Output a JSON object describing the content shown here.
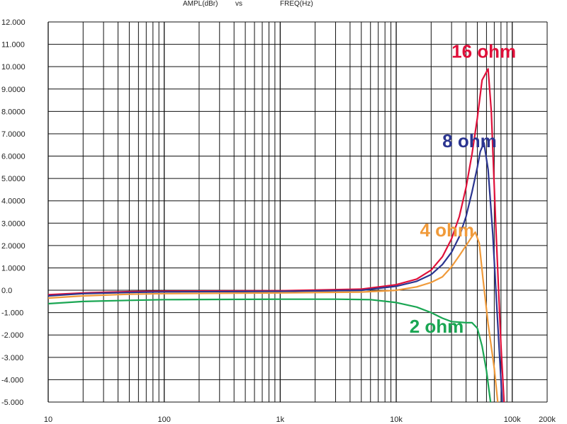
{
  "chart_data": {
    "type": "line",
    "title_left": "AMPL(dBr)",
    "title_mid": "vs",
    "title_right": "FREQ(Hz)",
    "xscale": "log",
    "xlim": [
      10,
      200000
    ],
    "ylim": [
      -5,
      12
    ],
    "grid": true,
    "x_ticks": [
      {
        "value": 10,
        "label": "10"
      },
      {
        "value": 100,
        "label": "100"
      },
      {
        "value": 1000,
        "label": "1k"
      },
      {
        "value": 10000,
        "label": "10k"
      },
      {
        "value": 100000,
        "label": "100k"
      },
      {
        "value": 200000,
        "label": "200k"
      }
    ],
    "y_ticks": [
      {
        "value": 12,
        "label": "12.000"
      },
      {
        "value": 11,
        "label": "11.000"
      },
      {
        "value": 10,
        "label": "10.000"
      },
      {
        "value": 9,
        "label": "9.0000"
      },
      {
        "value": 8,
        "label": "8.0000"
      },
      {
        "value": 7,
        "label": "7.0000"
      },
      {
        "value": 6,
        "label": "6.0000"
      },
      {
        "value": 5,
        "label": "5.0000"
      },
      {
        "value": 4,
        "label": "4.0000"
      },
      {
        "value": 3,
        "label": "3.0000"
      },
      {
        "value": 2,
        "label": "2.0000"
      },
      {
        "value": 1,
        "label": "1.0000"
      },
      {
        "value": 0,
        "label": "0.0"
      },
      {
        "value": -1,
        "label": "-1.000"
      },
      {
        "value": -2,
        "label": "-2.000"
      },
      {
        "value": -3,
        "label": "-3.000"
      },
      {
        "value": -4,
        "label": "-4.000"
      },
      {
        "value": -5,
        "label": "-5.000"
      }
    ],
    "series": [
      {
        "name": "16 ohm",
        "color": "#e0103a",
        "points": [
          [
            10,
            -0.2
          ],
          [
            20,
            -0.12
          ],
          [
            50,
            -0.06
          ],
          [
            100,
            -0.04
          ],
          [
            1000,
            -0.02
          ],
          [
            5000,
            0.05
          ],
          [
            10000,
            0.25
          ],
          [
            15000,
            0.5
          ],
          [
            20000,
            0.9
          ],
          [
            25000,
            1.5
          ],
          [
            30000,
            2.3
          ],
          [
            35000,
            3.3
          ],
          [
            40000,
            4.6
          ],
          [
            45000,
            6.1
          ],
          [
            50000,
            7.7
          ],
          [
            55000,
            9.4
          ],
          [
            62000,
            9.9
          ],
          [
            66000,
            8.0
          ],
          [
            72000,
            3.0
          ],
          [
            80000,
            -2.5
          ],
          [
            85000,
            -5.0
          ]
        ]
      },
      {
        "name": "8 ohm",
        "color": "#2b3590",
        "points": [
          [
            10,
            -0.25
          ],
          [
            20,
            -0.15
          ],
          [
            50,
            -0.1
          ],
          [
            100,
            -0.07
          ],
          [
            1000,
            -0.05
          ],
          [
            5000,
            0.0
          ],
          [
            10000,
            0.18
          ],
          [
            15000,
            0.4
          ],
          [
            20000,
            0.7
          ],
          [
            25000,
            1.15
          ],
          [
            30000,
            1.7
          ],
          [
            35000,
            2.4
          ],
          [
            40000,
            3.3
          ],
          [
            45000,
            4.4
          ],
          [
            50000,
            5.5
          ],
          [
            53000,
            6.2
          ],
          [
            57000,
            6.6
          ],
          [
            62000,
            5.4
          ],
          [
            68000,
            2.5
          ],
          [
            75000,
            -1.5
          ],
          [
            82000,
            -5.0
          ]
        ]
      },
      {
        "name": "4 ohm",
        "color": "#f09a3a",
        "points": [
          [
            10,
            -0.35
          ],
          [
            20,
            -0.25
          ],
          [
            50,
            -0.18
          ],
          [
            100,
            -0.15
          ],
          [
            1000,
            -0.12
          ],
          [
            5000,
            -0.08
          ],
          [
            10000,
            0.0
          ],
          [
            15000,
            0.15
          ],
          [
            20000,
            0.35
          ],
          [
            25000,
            0.6
          ],
          [
            30000,
            1.05
          ],
          [
            35000,
            1.55
          ],
          [
            40000,
            2.0
          ],
          [
            45000,
            2.4
          ],
          [
            48000,
            2.6
          ],
          [
            52000,
            2.1
          ],
          [
            56000,
            0.5
          ],
          [
            62000,
            -1.5
          ],
          [
            70000,
            -3.5
          ],
          [
            75000,
            -5.0
          ]
        ]
      },
      {
        "name": "2 ohm",
        "color": "#1aa653",
        "points": [
          [
            10,
            -0.6
          ],
          [
            20,
            -0.5
          ],
          [
            50,
            -0.45
          ],
          [
            100,
            -0.42
          ],
          [
            1000,
            -0.4
          ],
          [
            3000,
            -0.4
          ],
          [
            6000,
            -0.42
          ],
          [
            10000,
            -0.55
          ],
          [
            15000,
            -0.75
          ],
          [
            20000,
            -1.0
          ],
          [
            25000,
            -1.25
          ],
          [
            30000,
            -1.4
          ],
          [
            40000,
            -1.45
          ],
          [
            45000,
            -1.45
          ],
          [
            50000,
            -1.7
          ],
          [
            55000,
            -2.5
          ],
          [
            60000,
            -3.6
          ],
          [
            65000,
            -5.0
          ]
        ]
      }
    ],
    "annotations": [
      {
        "text": "16 ohm",
        "series": "16 ohm",
        "x": 30000,
        "y": 10.4
      },
      {
        "text": "8 ohm",
        "series": "8 ohm",
        "x": 25000,
        "y": 6.4
      },
      {
        "text": "4 ohm",
        "series": "4 ohm",
        "x": 16000,
        "y": 2.4
      },
      {
        "text": "2 ohm",
        "series": "2 ohm",
        "x": 13000,
        "y": -1.9
      }
    ]
  }
}
